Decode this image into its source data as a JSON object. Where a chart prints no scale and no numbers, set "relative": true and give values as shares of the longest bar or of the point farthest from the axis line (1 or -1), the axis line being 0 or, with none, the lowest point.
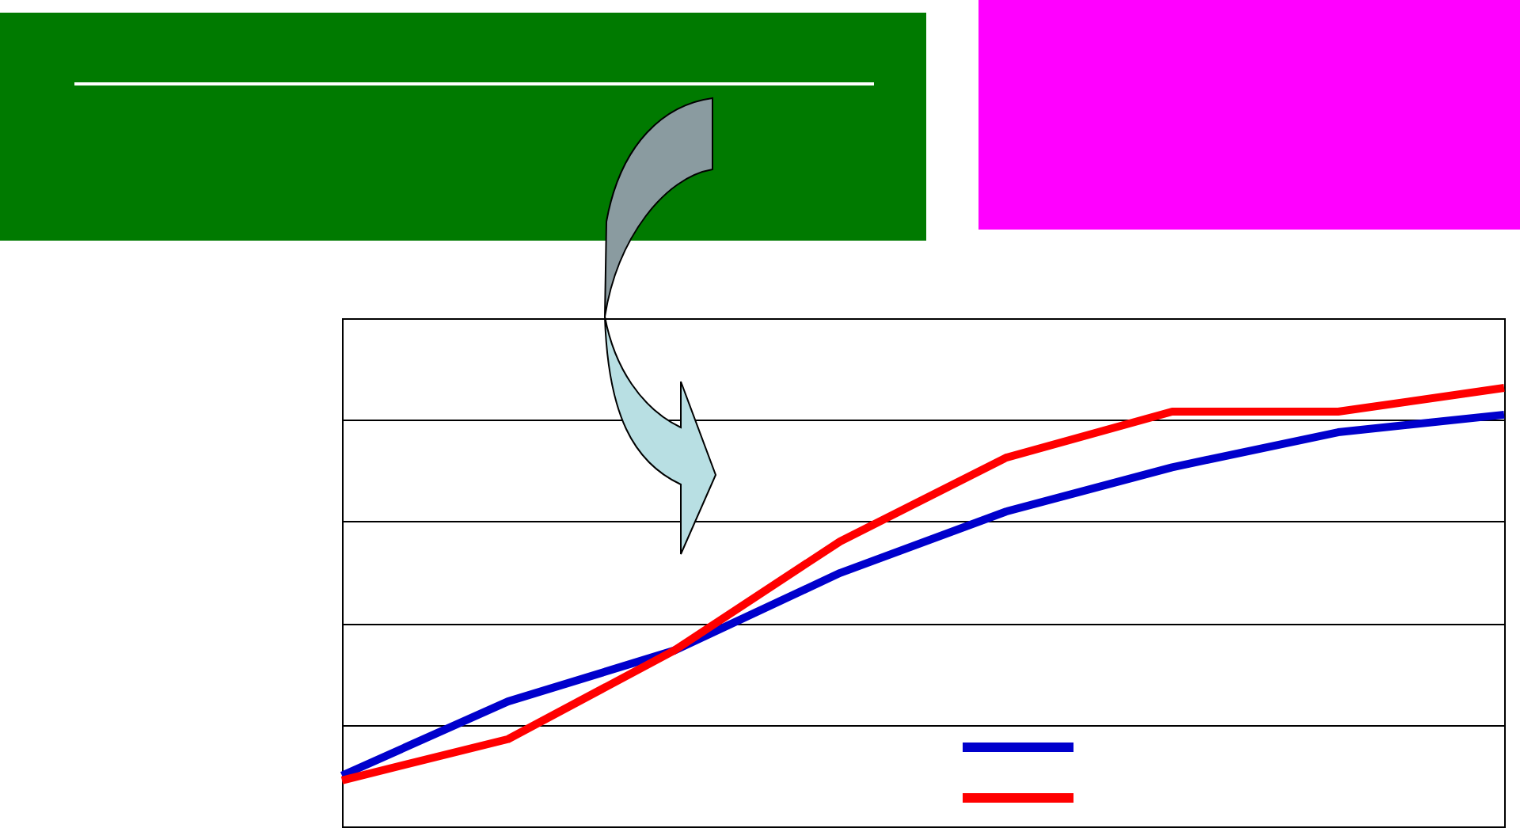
{
  "chart_data": {
    "type": "line",
    "relative": true,
    "categories": [
      null,
      null,
      null,
      null,
      null,
      null,
      null,
      null
    ],
    "series": [
      {
        "color": "#0000cc",
        "values": [
          0.116,
          0.285,
          0.401,
          0.578,
          0.718,
          0.819,
          0.899,
          0.939
        ]
      },
      {
        "color": "#ff0000",
        "values": [
          0.105,
          0.199,
          0.401,
          0.65,
          0.841,
          0.946,
          0.946,
          1
        ]
      }
    ],
    "grid": "y",
    "tick_labels": false,
    "marker": "none",
    "line_style": "solid"
  }
}
